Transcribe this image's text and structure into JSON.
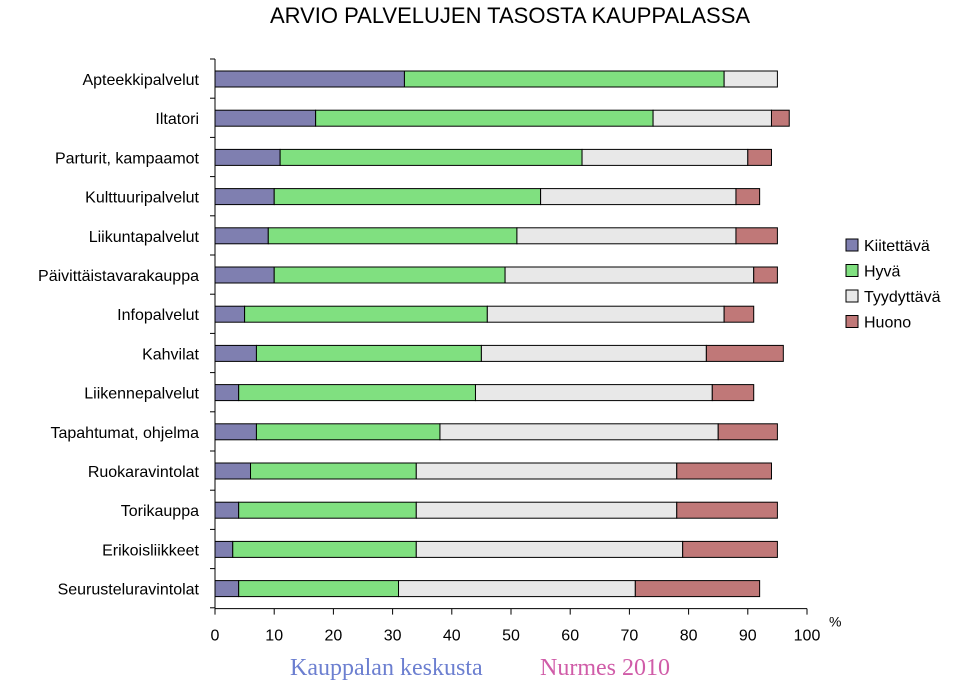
{
  "title": "ARVIO PALVELUJEN TASOSTA KAUPPALASSA",
  "footer": {
    "left": "Kauppalan keskusta",
    "right": "Nurmes 2010"
  },
  "colors": {
    "Kiitettävä": "#7f7fb0",
    "Hyvä": "#80e080",
    "Tyydyttävä": "#e8e8e8",
    "Huono": "#c07878"
  },
  "chart_data": {
    "type": "bar",
    "orientation": "horizontal",
    "stacked": true,
    "categories": [
      "Apteekkipalvelut",
      "Iltatori",
      "Parturit, kampaamot",
      "Kulttuuripalvelut",
      "Liikuntapalvelut",
      "Päivittäistavarakauppa",
      "Infopalvelut",
      "Kahvilat",
      "Liikennepalvelut",
      "Tapahtumat, ohjelma",
      "Ruokaravintolat",
      "Torikauppa",
      "Erikoisliikkeet",
      "Seurusteluravintolat"
    ],
    "series": [
      {
        "name": "Kiitettävä",
        "values": [
          32,
          17,
          11,
          10,
          9,
          10,
          5,
          7,
          4,
          7,
          6,
          4,
          3,
          4
        ]
      },
      {
        "name": "Hyvä",
        "values": [
          54,
          57,
          51,
          45,
          42,
          39,
          41,
          38,
          40,
          31,
          28,
          30,
          31,
          27
        ]
      },
      {
        "name": "Tyydyttävä",
        "values": [
          9,
          20,
          28,
          33,
          37,
          42,
          40,
          38,
          40,
          47,
          44,
          44,
          45,
          40
        ]
      },
      {
        "name": "Huono",
        "values": [
          0,
          3,
          4,
          4,
          7,
          4,
          5,
          13,
          7,
          10,
          16,
          17,
          16,
          21
        ]
      }
    ],
    "xlim": [
      0,
      100
    ],
    "xticks": [
      0,
      10,
      20,
      30,
      40,
      50,
      60,
      70,
      80,
      90,
      100
    ],
    "xlabel": "%",
    "grid": false,
    "legend": "right"
  }
}
